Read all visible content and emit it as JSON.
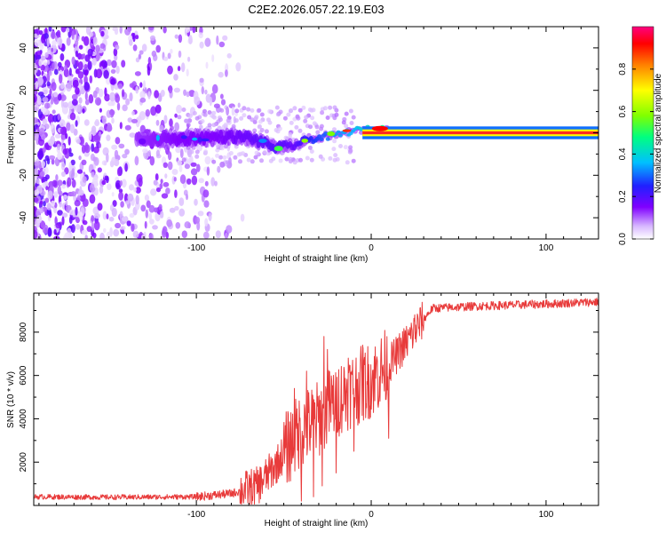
{
  "figure_title": "C2E2.2026.057.22.19.E03",
  "colors": {
    "line": "#e83a3a",
    "axes": "#000000",
    "band_center": "#ff2a20"
  },
  "chart_data": [
    {
      "type": "heatmap",
      "xlabel": "Height of straight line (km)",
      "ylabel": "Frequency (Hz)",
      "xlim": [
        -193,
        130
      ],
      "ylim": [
        -50,
        50
      ],
      "x_ticks": [
        -100,
        0,
        100
      ],
      "y_ticks": [
        -40,
        -20,
        0,
        20,
        40
      ],
      "colorbar": {
        "label": "Normalized spectral amplitude",
        "range": [
          0,
          1
        ],
        "ticks": [
          0.0,
          0.2,
          0.4,
          0.6,
          0.8
        ],
        "colormap": [
          "#ffffff",
          "#d8b8ff",
          "#8000ff",
          "#2020ff",
          "#00c0ff",
          "#00ff80",
          "#80ff00",
          "#ffff00",
          "#ff8000",
          "#ff0000",
          "#ff0080"
        ]
      },
      "ridge": [
        {
          "x": -135,
          "y": -3,
          "width": 6,
          "amp": 0.35
        },
        {
          "x": -110,
          "y": -3,
          "width": 7,
          "amp": 0.4
        },
        {
          "x": -90,
          "y": -2,
          "width": 6,
          "amp": 0.4
        },
        {
          "x": -70,
          "y": -2,
          "width": 6,
          "amp": 0.45
        },
        {
          "x": -55,
          "y": -7,
          "width": 5,
          "amp": 0.5
        },
        {
          "x": -45,
          "y": -6,
          "width": 4,
          "amp": 0.45
        },
        {
          "x": -35,
          "y": -3,
          "width": 3,
          "amp": 0.6
        },
        {
          "x": -20,
          "y": -1,
          "width": 2,
          "amp": 0.75
        },
        {
          "x": -10,
          "y": 1,
          "width": 2,
          "amp": 0.8
        },
        {
          "x": 5,
          "y": 2,
          "width": 2,
          "amp": 1.0
        },
        {
          "x": 15,
          "y": 0,
          "width": 1,
          "amp": 0.95
        },
        {
          "x": 130,
          "y": 0,
          "width": 1,
          "amp": 0.95
        }
      ]
    },
    {
      "type": "line",
      "xlabel": "Height of straight line (km)",
      "ylabel": "SNR (10 * v/v)",
      "xlim": [
        -193,
        130
      ],
      "ylim": [
        0,
        9800
      ],
      "x_ticks": [
        -100,
        0,
        100
      ],
      "y_ticks": [
        2000,
        4000,
        6000,
        8000
      ],
      "series": [
        {
          "name": "SNR",
          "color": "#e83a3a",
          "trend": {
            "x": [
              -193,
              -150,
              -100,
              -80,
              -65,
              -55,
              -45,
              -40,
              -30,
              -25,
              -15,
              0,
              10,
              20,
              30,
              35,
              60,
              100,
              130
            ],
            "y": [
              400,
              380,
              400,
              550,
              900,
              1800,
              3000,
              3500,
              4000,
              4500,
              5200,
              5800,
              6500,
              7500,
              8600,
              9100,
              9200,
              9300,
              9400
            ]
          },
          "peaks": [
            {
              "x": -44,
              "y": 5400
            },
            {
              "x": -37,
              "y": 6200
            },
            {
              "x": -27,
              "y": 7800
            },
            {
              "x": -25,
              "y": 7200
            },
            {
              "x": -13,
              "y": 6800
            },
            {
              "x": -5,
              "y": 7400
            },
            {
              "x": 3,
              "y": 6700
            },
            {
              "x": 15,
              "y": 7700
            },
            {
              "x": 25,
              "y": 8800
            }
          ],
          "troughs": [
            {
              "x": -40,
              "y": 200
            },
            {
              "x": -33,
              "y": 400
            },
            {
              "x": -28,
              "y": 900
            },
            {
              "x": -20,
              "y": 1500
            },
            {
              "x": -10,
              "y": 2500
            },
            {
              "x": 10,
              "y": 3100
            }
          ]
        }
      ]
    }
  ]
}
